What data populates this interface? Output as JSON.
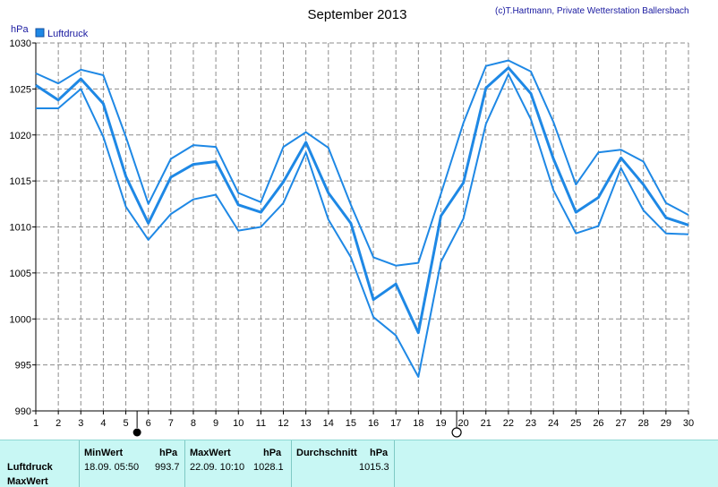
{
  "chart_data": {
    "type": "line",
    "title": "September 2013",
    "credit": "(c)T.Hartmann, Private Wetterstation Ballersbach",
    "ylabel": "hPa",
    "ylim": [
      990,
      1030
    ],
    "yticks": [
      990,
      995,
      1000,
      1005,
      1010,
      1015,
      1020,
      1025,
      1030
    ],
    "x": [
      1,
      2,
      3,
      4,
      5,
      6,
      7,
      8,
      9,
      10,
      11,
      12,
      13,
      14,
      15,
      16,
      17,
      18,
      19,
      20,
      21,
      22,
      23,
      24,
      25,
      26,
      27,
      28,
      29,
      30
    ],
    "legend": "Luftdruck",
    "grid": true,
    "series": [
      {
        "role": "max",
        "color": "#1e88e5",
        "values": [
          1026.7,
          1025.6,
          1027.1,
          1026.5,
          1019.8,
          1012.5,
          1017.4,
          1018.9,
          1018.7,
          1013.7,
          1012.7,
          1018.7,
          1020.3,
          1018.6,
          1012.4,
          1006.7,
          1005.8,
          1006.1,
          1013.6,
          1021.3,
          1027.5,
          1028.1,
          1026.9,
          1021.4,
          1014.6,
          1018.1,
          1018.4,
          1017.1,
          1012.6,
          1011.3
        ]
      },
      {
        "role": "mean",
        "color": "#1e88e5",
        "values": [
          1025.4,
          1023.8,
          1026.1,
          1023.4,
          1015.5,
          1010.4,
          1015.4,
          1016.8,
          1017.1,
          1012.4,
          1011.6,
          1014.9,
          1019.2,
          1013.7,
          1010.4,
          1002.1,
          1003.8,
          998.5,
          1011.2,
          1014.8,
          1025.1,
          1027.3,
          1024.5,
          1017.4,
          1011.6,
          1013.2,
          1017.5,
          1014.6,
          1011.0,
          1010.2
        ]
      },
      {
        "role": "min",
        "color": "#1e88e5",
        "values": [
          1022.9,
          1022.9,
          1025.0,
          1019.8,
          1012.2,
          1008.6,
          1011.4,
          1013.0,
          1013.5,
          1009.6,
          1010.0,
          1012.6,
          1018.1,
          1010.8,
          1006.7,
          1000.2,
          998.2,
          993.7,
          1006.2,
          1010.9,
          1021.2,
          1026.6,
          1021.7,
          1014.0,
          1009.3,
          1010.1,
          1016.4,
          1011.8,
          1009.3,
          1009.2
        ]
      }
    ],
    "moon_phases": [
      {
        "x": 5.5,
        "phase": "new"
      },
      {
        "x": 19.7,
        "phase": "full"
      }
    ]
  },
  "stats_table": {
    "row_labels": [
      "Luftdruck",
      "MaxWert"
    ],
    "min_header": "MinWert",
    "min_unit": "hPa",
    "min_datetime": "18.09.  05:50",
    "min_value": "993.7",
    "max_header": "MaxWert",
    "max_unit": "hPa",
    "max_datetime": "22.09.  10:10",
    "max_value": "1028.1",
    "avg_header": "Durchschnitt",
    "avg_unit": "hPa",
    "avg_value": "1015.3"
  },
  "colors": {
    "line": "#1e88e5",
    "grid": "#8c8c8c",
    "stats_background": "#c8f7f4"
  }
}
